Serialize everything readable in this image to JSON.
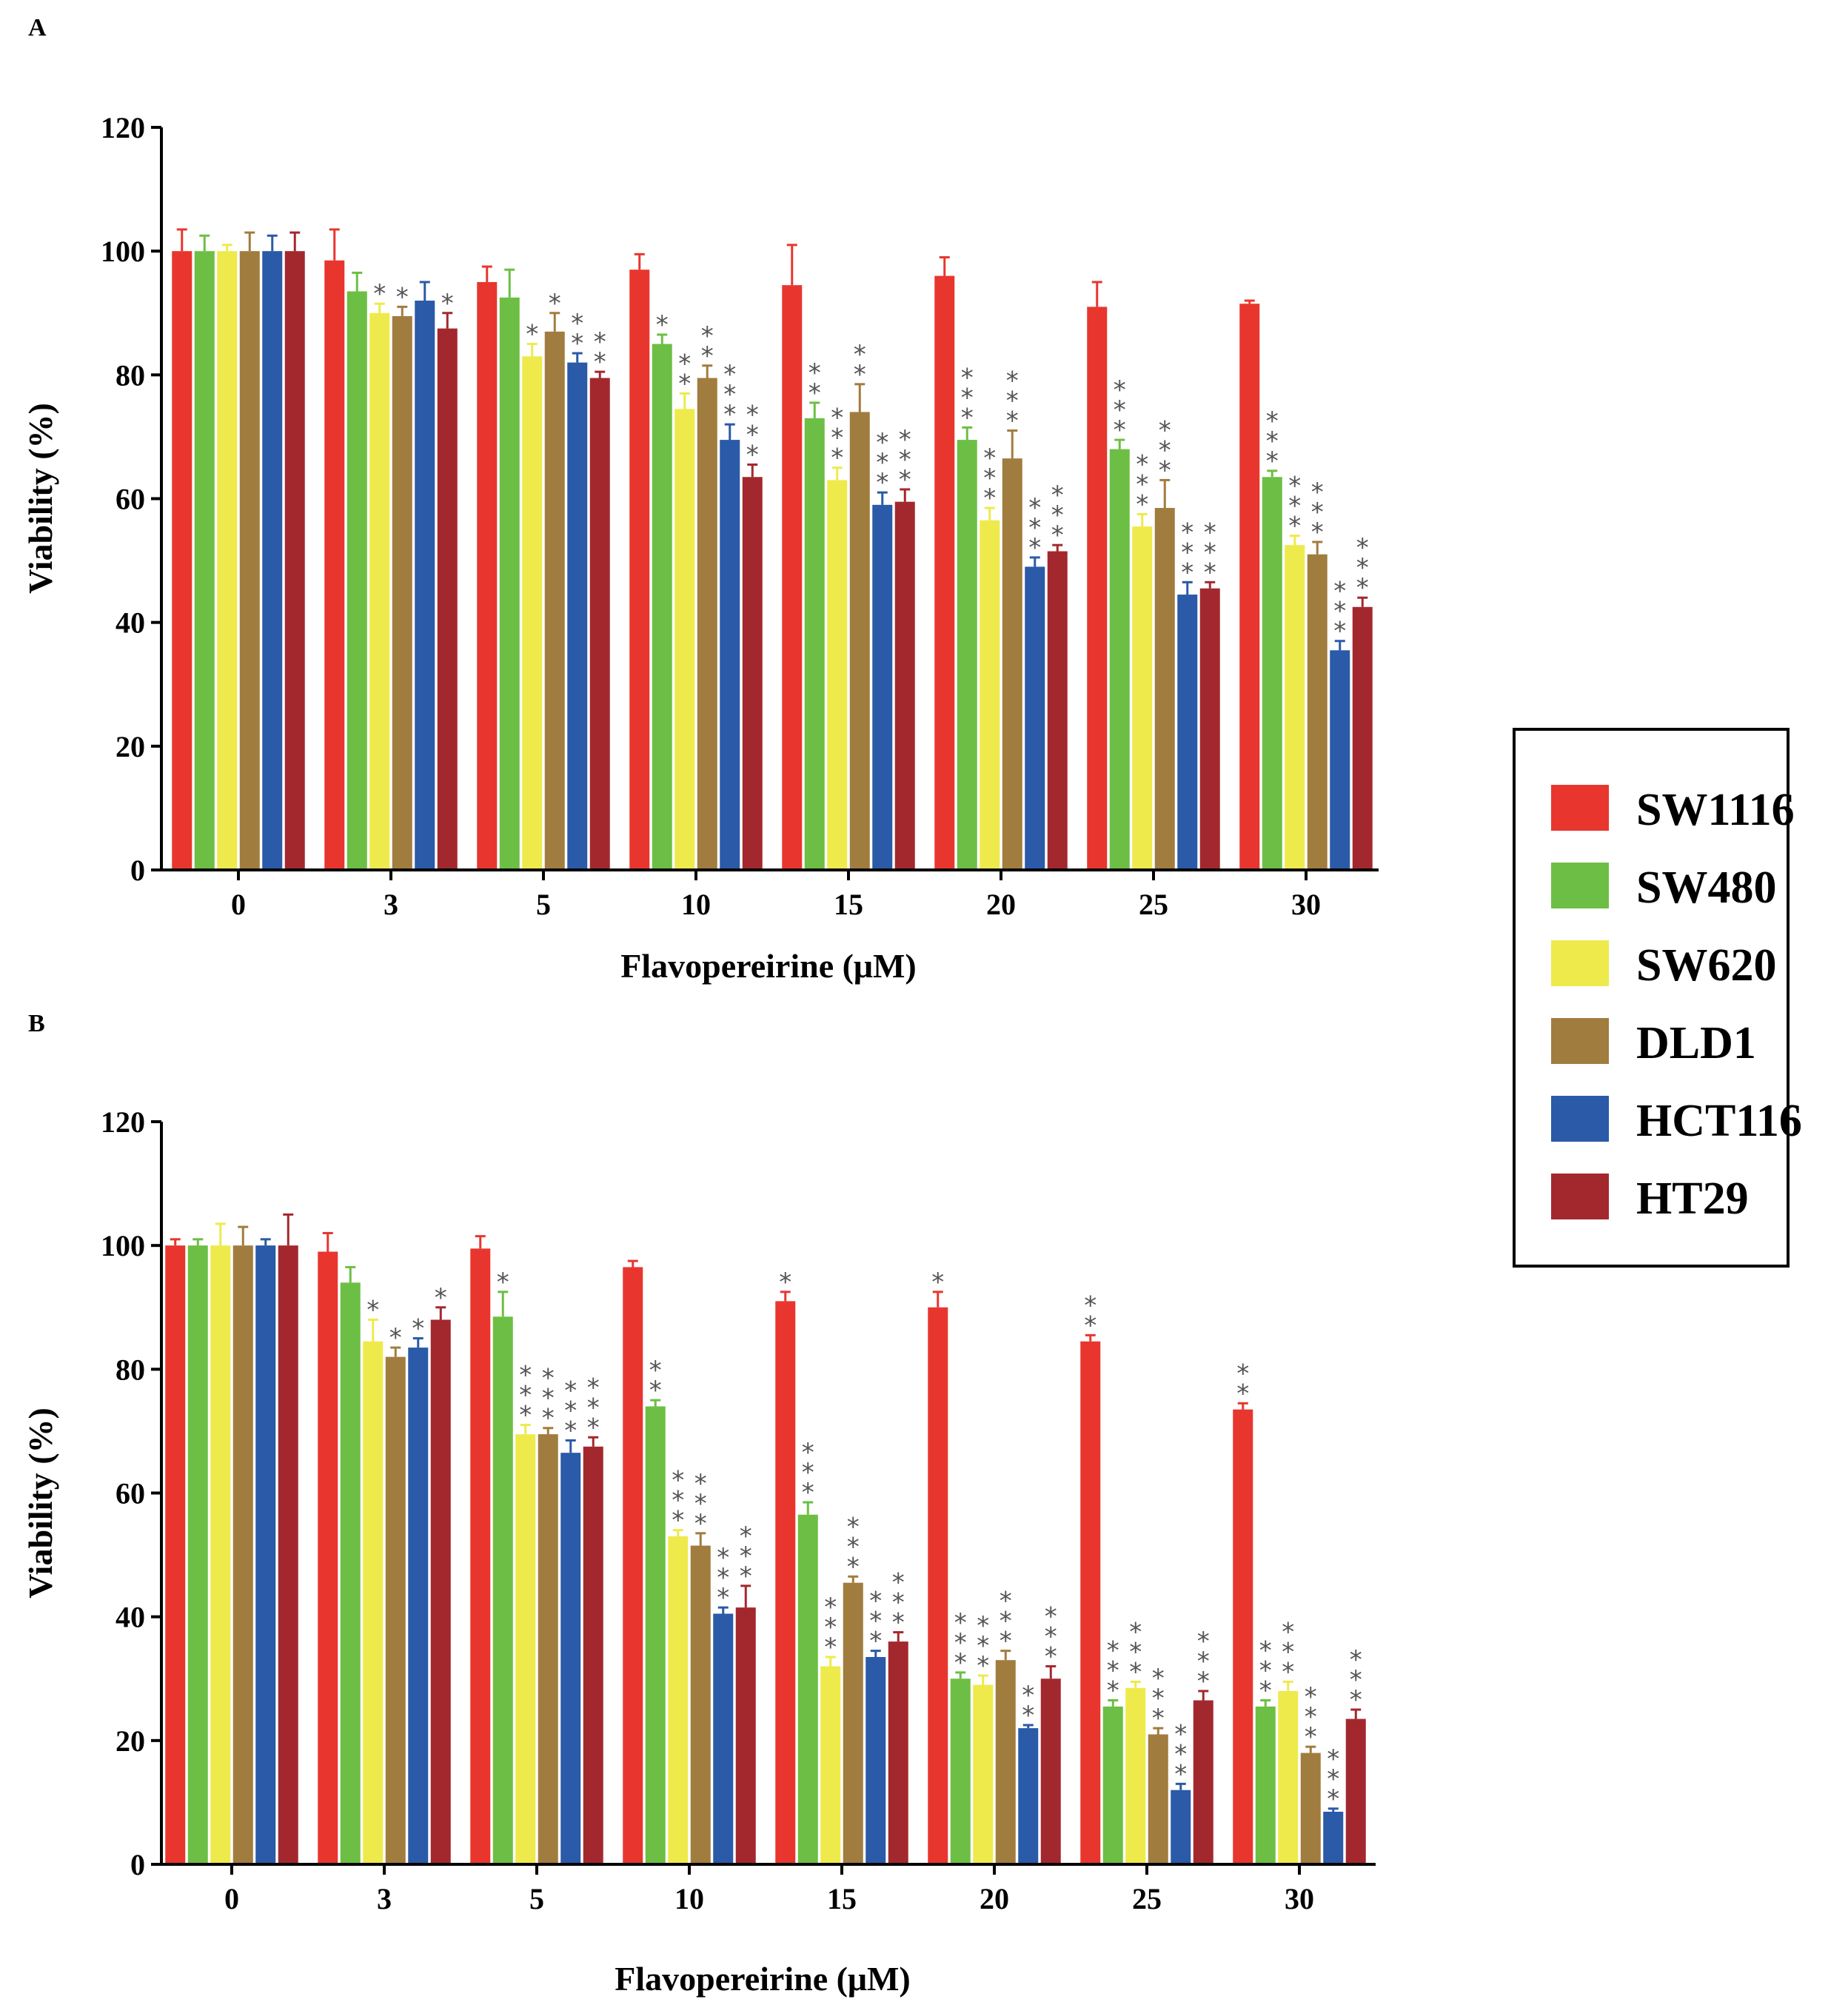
{
  "colors": {
    "SW1116": "#e8362e",
    "SW480": "#6cbf44",
    "SW620": "#eeea4c",
    "DLD1": "#a17c3f",
    "HCT116": "#2a5aa8",
    "HT29": "#a3282e"
  },
  "chart_data": [
    {
      "type": "bar",
      "panel": "A",
      "title": "",
      "xlabel": "Flavopereirine (μM)",
      "ylabel": "Viability (%)",
      "ylim": [
        0,
        120
      ],
      "yticks": [
        "0",
        "20",
        "40",
        "60",
        "80",
        "100",
        "120"
      ],
      "categories": [
        "0",
        "3",
        "5",
        "10",
        "15",
        "20",
        "25",
        "30"
      ],
      "series": [
        {
          "name": "SW1116",
          "values": [
            100,
            98.5,
            95,
            97,
            94.5,
            96,
            91,
            91.5
          ],
          "errors": [
            3.5,
            5,
            2.5,
            2.5,
            6.5,
            3,
            4,
            0.5
          ],
          "stars": [
            "",
            "",
            "",
            "",
            "",
            "",
            "",
            ""
          ]
        },
        {
          "name": "SW480",
          "values": [
            100,
            93.5,
            92.5,
            85,
            73,
            69.5,
            68,
            63.5
          ],
          "errors": [
            2.5,
            3,
            4.5,
            1.5,
            2.5,
            2,
            1.5,
            1
          ],
          "stars": [
            "",
            "",
            "",
            "*",
            "**",
            "***",
            "***",
            "***"
          ]
        },
        {
          "name": "SW620",
          "values": [
            100,
            90,
            83,
            74.5,
            63,
            56.5,
            55.5,
            52.5
          ],
          "errors": [
            1,
            1.5,
            2,
            2.5,
            2,
            2,
            2,
            1.5
          ],
          "stars": [
            "",
            "*",
            "*",
            "**",
            "***",
            "***",
            "***",
            "***"
          ]
        },
        {
          "name": "DLD1",
          "values": [
            100,
            89.5,
            87,
            79.5,
            74,
            66.5,
            58.5,
            51
          ],
          "errors": [
            3,
            1.5,
            3,
            2,
            4.5,
            4.5,
            4.5,
            2
          ],
          "stars": [
            "",
            "*",
            "*",
            "**",
            "**",
            "***",
            "***",
            "***"
          ]
        },
        {
          "name": "HCT116",
          "values": [
            100,
            92,
            82,
            69.5,
            59,
            49,
            44.5,
            35.5
          ],
          "errors": [
            2.5,
            3,
            1.5,
            2.5,
            2,
            1.5,
            2,
            1.5
          ],
          "stars": [
            "",
            "",
            "**",
            "***",
            "***",
            "***",
            "***",
            "***"
          ]
        },
        {
          "name": "HT29",
          "values": [
            100,
            87.5,
            79.5,
            63.5,
            59.5,
            51.5,
            45.5,
            42.5
          ],
          "errors": [
            3,
            2.5,
            1,
            2,
            2,
            1,
            1,
            1.5
          ],
          "stars": [
            "",
            "*",
            "**",
            "***",
            "***",
            "***",
            "***",
            "***"
          ]
        }
      ]
    },
    {
      "type": "bar",
      "panel": "B",
      "title": "",
      "xlabel": "Flavopereirine (μM)",
      "ylabel": "Viability (%)",
      "ylim": [
        0,
        120
      ],
      "yticks": [
        "0",
        "20",
        "40",
        "60",
        "80",
        "100",
        "120"
      ],
      "categories": [
        "0",
        "3",
        "5",
        "10",
        "15",
        "20",
        "25",
        "30"
      ],
      "series": [
        {
          "name": "SW1116",
          "values": [
            100,
            99,
            99.5,
            96.5,
            91,
            90,
            84.5,
            73.5
          ],
          "errors": [
            1,
            3,
            2,
            1,
            1.5,
            2.5,
            1,
            1
          ],
          "stars": [
            "",
            "",
            "",
            "",
            "*",
            "*",
            "**",
            "**"
          ]
        },
        {
          "name": "SW480",
          "values": [
            100,
            94,
            88.5,
            74,
            56.5,
            30,
            25.5,
            25.5
          ],
          "errors": [
            1,
            2.5,
            4,
            1,
            2,
            1,
            1,
            1
          ],
          "stars": [
            "",
            "",
            "*",
            "**",
            "***",
            "***",
            "***",
            "***"
          ]
        },
        {
          "name": "SW620",
          "values": [
            100,
            84.5,
            69.5,
            53,
            32,
            29,
            28.5,
            28
          ],
          "errors": [
            3.5,
            3.5,
            1.5,
            1,
            1.5,
            1.5,
            1,
            1.5
          ],
          "stars": [
            "",
            "*",
            "***",
            "***",
            "***",
            "***",
            "***",
            "***"
          ]
        },
        {
          "name": "DLD1",
          "values": [
            100,
            82,
            69.5,
            51.5,
            45.5,
            33,
            21,
            18
          ],
          "errors": [
            3,
            1.5,
            1,
            2,
            1,
            1.5,
            1,
            1
          ],
          "stars": [
            "",
            "*",
            "***",
            "***",
            "***",
            "***",
            "***",
            "***"
          ]
        },
        {
          "name": "HCT116",
          "values": [
            100,
            83.5,
            66.5,
            40.5,
            33.5,
            22,
            12,
            8.5
          ],
          "errors": [
            1,
            1.5,
            2,
            1,
            1,
            0.5,
            1,
            0.5
          ],
          "stars": [
            "",
            "*",
            "***",
            "***",
            "***",
            "**",
            "***",
            "***"
          ]
        },
        {
          "name": "HT29",
          "values": [
            100,
            88,
            67.5,
            41.5,
            36,
            30,
            26.5,
            23.5
          ],
          "errors": [
            5,
            2,
            1.5,
            3.5,
            1.5,
            2,
            1.5,
            1.5
          ],
          "stars": [
            "",
            "*",
            "***",
            "***",
            "***",
            "***",
            "***",
            "***"
          ]
        }
      ]
    }
  ],
  "legend": {
    "entries": [
      "SW1116",
      "SW480",
      "SW620",
      "DLD1",
      "HCT116",
      "HT29"
    ]
  }
}
